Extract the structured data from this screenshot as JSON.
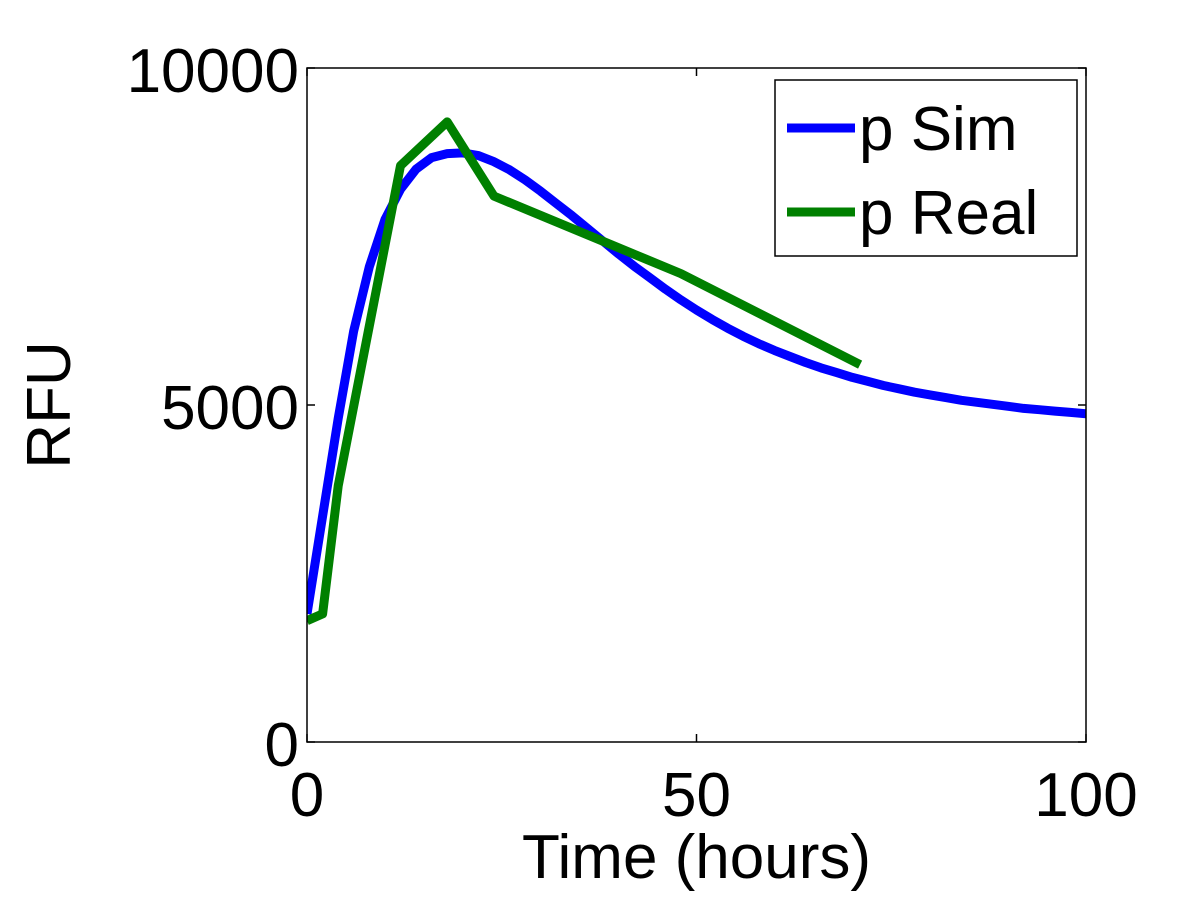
{
  "chart_data": {
    "type": "line",
    "title": "",
    "xlabel": "Time (hours)",
    "ylabel": "RFU",
    "xlim": [
      0,
      100
    ],
    "ylim": [
      0,
      10000
    ],
    "xticks": [
      0,
      50,
      100
    ],
    "yticks": [
      0,
      5000,
      10000
    ],
    "xtick_labels": [
      "0",
      "50",
      "100"
    ],
    "ytick_labels": [
      "0",
      "5000",
      "10000"
    ],
    "grid": false,
    "legend_position": "top-right",
    "series": [
      {
        "name": "p Sim",
        "color": "#0000ff",
        "x": [
          0,
          2,
          4,
          6,
          8,
          10,
          12,
          14,
          16,
          18,
          20,
          22,
          24,
          26,
          28,
          30,
          32,
          34,
          36,
          38,
          40,
          42,
          44,
          46,
          48,
          50,
          52,
          54,
          56,
          58,
          60,
          62,
          64,
          66,
          68,
          70,
          72,
          74,
          76,
          78,
          80,
          82,
          84,
          86,
          88,
          90,
          92,
          94,
          96,
          98,
          100
        ],
        "y": [
          1900,
          3350,
          4800,
          6100,
          7050,
          7750,
          8200,
          8500,
          8670,
          8730,
          8740,
          8700,
          8610,
          8490,
          8340,
          8170,
          7990,
          7810,
          7620,
          7430,
          7240,
          7060,
          6890,
          6720,
          6560,
          6410,
          6270,
          6140,
          6020,
          5910,
          5810,
          5720,
          5630,
          5550,
          5480,
          5410,
          5350,
          5290,
          5240,
          5190,
          5150,
          5110,
          5070,
          5040,
          5010,
          4980,
          4950,
          4930,
          4910,
          4890,
          4870
        ]
      },
      {
        "name": "p Real",
        "color": "#008000",
        "x": [
          0,
          2,
          4,
          12,
          18,
          24,
          48,
          71
        ],
        "y": [
          1800,
          1900,
          3800,
          8550,
          9200,
          8100,
          6950,
          5600
        ]
      }
    ]
  }
}
